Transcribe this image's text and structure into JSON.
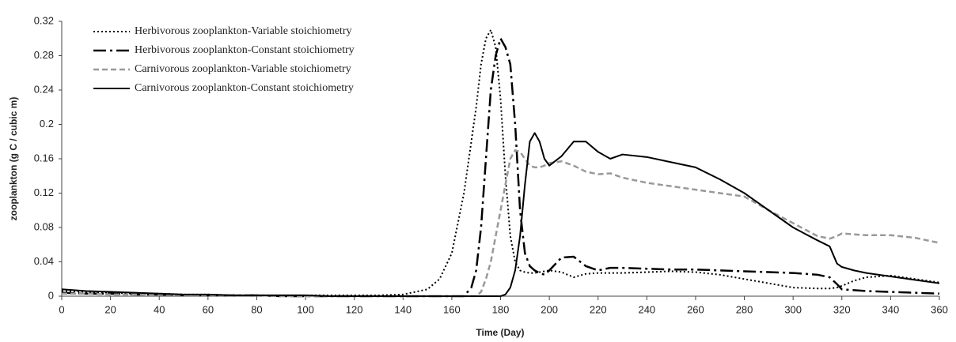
{
  "chart_data": {
    "type": "line",
    "xlabel": "Time (Day)",
    "ylabel": "zooplankton (g C / cubic m)",
    "x": [
      0,
      10,
      20,
      30,
      40,
      50,
      60,
      70,
      80,
      90,
      100,
      110,
      120,
      130,
      140,
      150,
      155,
      160,
      165,
      168,
      170,
      172,
      174,
      176,
      178,
      180,
      182,
      184,
      186,
      188,
      190,
      192,
      194,
      196,
      198,
      200,
      205,
      210,
      215,
      220,
      225,
      230,
      240,
      250,
      260,
      270,
      280,
      290,
      300,
      310,
      315,
      318,
      320,
      325,
      330,
      340,
      350,
      360
    ],
    "series": [
      {
        "name": "Herbivorous zooplankton-Variable stoichiometry",
        "color": "#000000",
        "dash": "dotted",
        "values": [
          0.006,
          0.005,
          0.004,
          0.003,
          0.003,
          0.002,
          0.002,
          0.001,
          0.001,
          0.001,
          0.001,
          0.001,
          0.001,
          0.001,
          0.002,
          0.008,
          0.02,
          0.05,
          0.12,
          0.18,
          0.22,
          0.27,
          0.3,
          0.31,
          0.29,
          0.23,
          0.14,
          0.07,
          0.04,
          0.03,
          0.028,
          0.027,
          0.027,
          0.028,
          0.029,
          0.03,
          0.028,
          0.022,
          0.026,
          0.027,
          0.027,
          0.027,
          0.028,
          0.029,
          0.028,
          0.025,
          0.02,
          0.015,
          0.01,
          0.009,
          0.009,
          0.01,
          0.012,
          0.018,
          0.022,
          0.024,
          0.02,
          0.016
        ]
      },
      {
        "name": "Herbivorous zooplankton-Constant stoichiometry",
        "color": "#000000",
        "dash": "dashdot",
        "values": [
          0.004,
          0.003,
          0.003,
          0.002,
          0.002,
          0.001,
          0.001,
          0.001,
          0.001,
          0,
          0,
          0,
          0,
          0,
          0,
          0,
          0,
          0,
          0,
          0.01,
          0.03,
          0.08,
          0.16,
          0.24,
          0.28,
          0.3,
          0.29,
          0.27,
          0.2,
          0.1,
          0.05,
          0.035,
          0.03,
          0.027,
          0.025,
          0.03,
          0.045,
          0.046,
          0.035,
          0.03,
          0.033,
          0.033,
          0.032,
          0.031,
          0.031,
          0.03,
          0.029,
          0.028,
          0.027,
          0.025,
          0.022,
          0.014,
          0.008,
          0.007,
          0.006,
          0.005,
          0.004,
          0.003
        ]
      },
      {
        "name": "Carnivorous zooplankton-Variable stoichiometry",
        "color": "#999999",
        "dash": "dashed",
        "values": [
          0.003,
          0.003,
          0.002,
          0.002,
          0.002,
          0.001,
          0.001,
          0.001,
          0.001,
          0,
          0,
          0,
          0,
          0,
          0,
          0,
          0,
          0,
          0,
          0,
          0,
          0.005,
          0.02,
          0.04,
          0.07,
          0.1,
          0.13,
          0.16,
          0.17,
          0.168,
          0.16,
          0.152,
          0.15,
          0.15,
          0.152,
          0.155,
          0.157,
          0.152,
          0.145,
          0.142,
          0.143,
          0.138,
          0.132,
          0.128,
          0.124,
          0.12,
          0.116,
          0.1,
          0.085,
          0.07,
          0.067,
          0.07,
          0.073,
          0.072,
          0.071,
          0.071,
          0.068,
          0.062
        ]
      },
      {
        "name": "Carnivorous zooplankton-Constant stoichiometry",
        "color": "#000000",
        "dash": "solid",
        "values": [
          0.008,
          0.006,
          0.005,
          0.004,
          0.003,
          0.002,
          0.002,
          0.001,
          0.001,
          0.001,
          0.001,
          0,
          0,
          0,
          0,
          0,
          0,
          0,
          0,
          0,
          0,
          0,
          0,
          0,
          0,
          0,
          0.002,
          0.01,
          0.03,
          0.07,
          0.13,
          0.18,
          0.19,
          0.18,
          0.16,
          0.152,
          0.163,
          0.18,
          0.18,
          0.168,
          0.16,
          0.165,
          0.162,
          0.156,
          0.15,
          0.136,
          0.12,
          0.1,
          0.08,
          0.065,
          0.058,
          0.038,
          0.034,
          0.03,
          0.027,
          0.023,
          0.019,
          0.015
        ]
      }
    ],
    "xlim": [
      0,
      360
    ],
    "xticks": [
      0,
      20,
      40,
      60,
      80,
      100,
      120,
      140,
      160,
      180,
      200,
      220,
      240,
      260,
      280,
      300,
      320,
      340,
      360
    ],
    "ylim": [
      0,
      0.32
    ],
    "yticks": [
      0,
      0.04,
      0.08,
      0.12,
      0.16,
      0.2,
      0.24,
      0.28,
      0.32
    ],
    "legend": "upper left"
  }
}
